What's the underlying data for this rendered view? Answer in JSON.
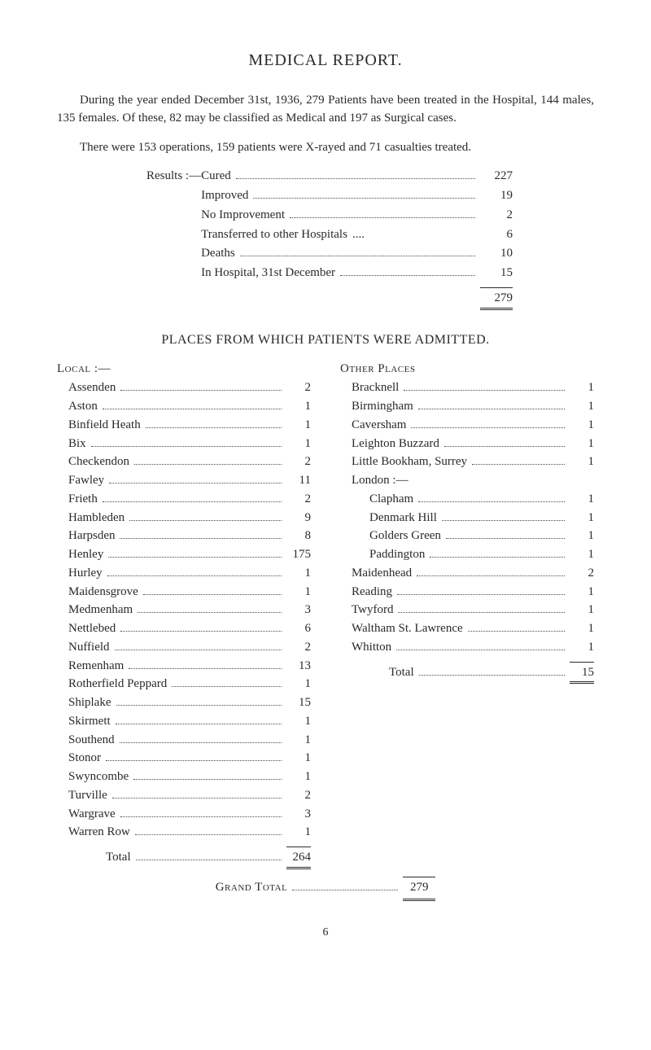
{
  "title": "MEDICAL REPORT.",
  "para1": "During the year ended December 31st, 1936, 279 Patients have been treated in the Hospital, 144 males, 135 females. Of these, 82 may be classified as Medical and 197 as Surgical cases.",
  "para2": "There were 153 operations, 159 patients were X-rayed and 71 casualties treated.",
  "results": {
    "prefix": "Results :—",
    "rows": [
      {
        "label": "Cured",
        "value": "227"
      },
      {
        "label": "Improved",
        "value": "19"
      },
      {
        "label": "No Improvement",
        "value": "2"
      },
      {
        "label": "Transferred to other Hospitals",
        "value": "6",
        "tight": true
      },
      {
        "label": "Deaths",
        "value": "10"
      },
      {
        "label": "In Hospital, 31st December",
        "value": "15"
      }
    ],
    "total": "279"
  },
  "placesHeading": "PLACES FROM WHICH PATIENTS WERE ADMITTED.",
  "local": {
    "header": "Local :—",
    "rows": [
      {
        "label": "Assenden",
        "value": "2"
      },
      {
        "label": "Aston",
        "value": "1"
      },
      {
        "label": "Binfield Heath",
        "value": "1"
      },
      {
        "label": "Bix",
        "value": "1"
      },
      {
        "label": "Checkendon",
        "value": "2"
      },
      {
        "label": "Fawley",
        "value": "11"
      },
      {
        "label": "Frieth",
        "value": "2"
      },
      {
        "label": "Hambleden",
        "value": "9"
      },
      {
        "label": "Harpsden",
        "value": "8"
      },
      {
        "label": "Henley",
        "value": "175"
      },
      {
        "label": "Hurley",
        "value": "1"
      },
      {
        "label": "Maidensgrove",
        "value": "1"
      },
      {
        "label": "Medmenham",
        "value": "3"
      },
      {
        "label": "Nettlebed",
        "value": "6"
      },
      {
        "label": "Nuffield",
        "value": "2"
      },
      {
        "label": "Remenham",
        "value": "13"
      },
      {
        "label": "Rotherfield Peppard",
        "value": "1"
      },
      {
        "label": "Shiplake",
        "value": "15"
      },
      {
        "label": "Skirmett",
        "value": "1"
      },
      {
        "label": "Southend",
        "value": "1"
      },
      {
        "label": "Stonor",
        "value": "1"
      },
      {
        "label": "Swyncombe",
        "value": "1"
      },
      {
        "label": "Turville",
        "value": "2"
      },
      {
        "label": "Wargrave",
        "value": "3"
      },
      {
        "label": "Warren Row",
        "value": "1"
      }
    ],
    "totalLabel": "Total",
    "total": "264"
  },
  "other": {
    "header": "Other Places",
    "rows": [
      {
        "label": "Bracknell",
        "value": "1"
      },
      {
        "label": "Birmingham",
        "value": "1"
      },
      {
        "label": "Caversham",
        "value": "1"
      },
      {
        "label": "Leighton Buzzard",
        "value": "1"
      },
      {
        "label": "Little Bookham, Surrey",
        "value": "1"
      },
      {
        "label": "London :—",
        "value": "",
        "nodots": true
      },
      {
        "label": "Clapham",
        "value": "1",
        "sub": true
      },
      {
        "label": "Denmark Hill",
        "value": "1",
        "sub": true
      },
      {
        "label": "Golders Green",
        "value": "1",
        "sub": true
      },
      {
        "label": "Paddington",
        "value": "1",
        "sub": true
      },
      {
        "label": "Maidenhead",
        "value": "2"
      },
      {
        "label": "Reading",
        "value": "1"
      },
      {
        "label": "Twyford",
        "value": "1"
      },
      {
        "label": "Waltham St. Lawrence",
        "value": "1"
      },
      {
        "label": "Whitton",
        "value": "1"
      }
    ],
    "totalLabel": "Total",
    "total": "15"
  },
  "grandTotal": {
    "label": "Grand Total",
    "value": "279"
  },
  "pageNumber": "6"
}
